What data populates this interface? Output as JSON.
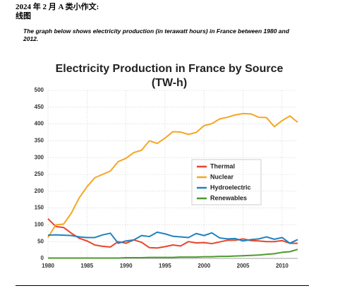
{
  "header": {
    "title": "2024 年 2 月 A 类小作文:",
    "subtitle": "线图"
  },
  "prompt": "The graph below shows electricity production (in terawatt hours) in France between 1980 and 2012.",
  "chart_data": {
    "type": "line",
    "title": "Electricity Production in France by Source",
    "subtitle": "(TW-h)",
    "x": [
      1980,
      1981,
      1982,
      1983,
      1984,
      1985,
      1986,
      1987,
      1988,
      1989,
      1990,
      1991,
      1992,
      1993,
      1994,
      1995,
      1996,
      1997,
      1998,
      1999,
      2000,
      2001,
      2002,
      2003,
      2004,
      2005,
      2006,
      2007,
      2008,
      2009,
      2010,
      2011,
      2012
    ],
    "xlim": [
      1980,
      2012
    ],
    "xticks": [
      1980,
      1985,
      1990,
      1995,
      2000,
      2005,
      2010
    ],
    "ylim": [
      0,
      500
    ],
    "yticks": [
      0,
      50,
      100,
      150,
      200,
      250,
      300,
      350,
      400,
      450,
      500
    ],
    "grid": true,
    "series": [
      {
        "name": "Thermal",
        "color": "#e8452a",
        "values": [
          118,
          95,
          92,
          75,
          60,
          52,
          40,
          36,
          34,
          50,
          45,
          55,
          48,
          32,
          31,
          35,
          40,
          37,
          50,
          46,
          47,
          44,
          49,
          54,
          54,
          58,
          53,
          52,
          50,
          50,
          53,
          45,
          45
        ]
      },
      {
        "name": "Nuclear",
        "color": "#f5a623",
        "values": [
          62,
          100,
          102,
          135,
          180,
          213,
          240,
          250,
          260,
          288,
          298,
          315,
          322,
          350,
          342,
          358,
          377,
          376,
          369,
          375,
          395,
          401,
          415,
          420,
          427,
          431,
          430,
          420,
          419,
          392,
          410,
          424,
          405
        ]
      },
      {
        "name": "Hydroelectric",
        "color": "#1f82c0",
        "values": [
          69,
          70,
          69,
          68,
          64,
          62,
          62,
          70,
          75,
          45,
          52,
          55,
          68,
          65,
          78,
          73,
          66,
          64,
          62,
          74,
          68,
          76,
          61,
          58,
          59,
          52,
          56,
          58,
          64,
          57,
          62,
          45,
          56
        ]
      },
      {
        "name": "Renewables",
        "color": "#4e9a2e",
        "values": [
          1,
          1,
          1,
          1,
          1,
          1,
          1,
          1,
          1,
          1,
          2,
          2,
          2,
          3,
          3,
          3,
          3,
          4,
          4,
          4,
          5,
          5,
          6,
          6,
          7,
          8,
          9,
          10,
          12,
          14,
          18,
          20,
          27
        ]
      }
    ]
  }
}
